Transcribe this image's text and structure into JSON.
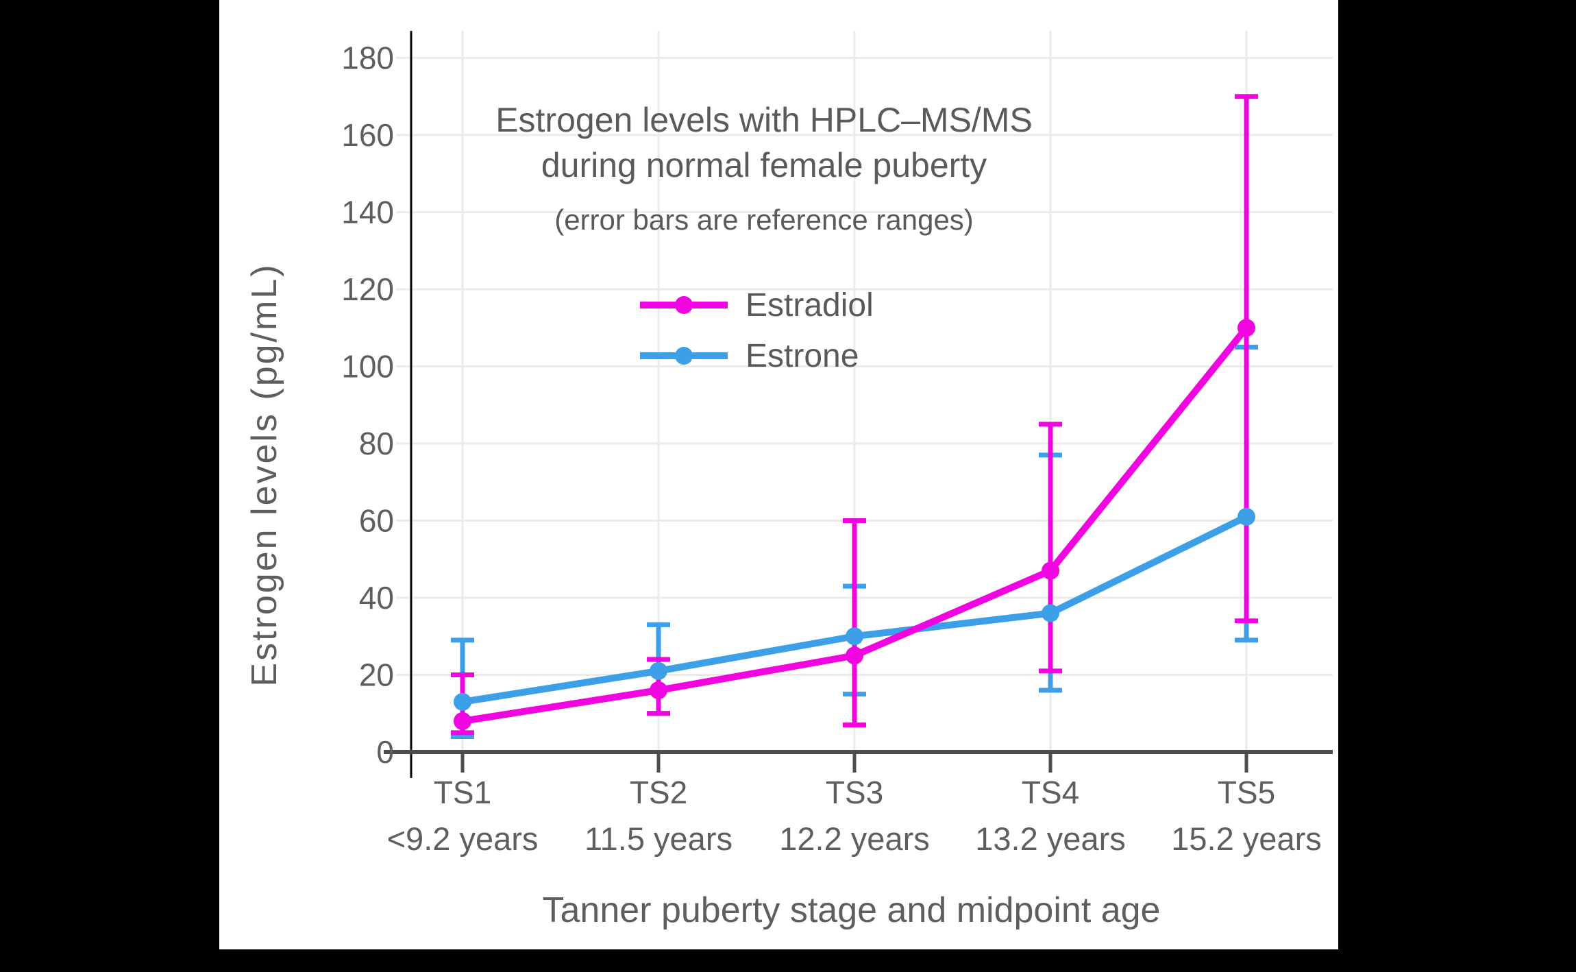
{
  "page": {
    "background": "#000000",
    "panel_background": "#ffffff"
  },
  "chart_data": {
    "type": "line",
    "title": "Estrogen levels with HPLC–MS/MS",
    "title_line2": "during normal female puberty",
    "subtitle": "(error bars are reference ranges)",
    "xlabel": "Tanner puberty stage and midpoint age",
    "ylabel": "Estrogen levels (pg/mL)",
    "categories": [
      "TS1",
      "TS2",
      "TS3",
      "TS4",
      "TS5"
    ],
    "category_sublabels": [
      "<9.2 years",
      "11.5 years",
      "12.2 years",
      "13.2 years",
      "15.2 years"
    ],
    "ylim": [
      0,
      180
    ],
    "ytick_interval": 20,
    "ytick_labels": [
      "0",
      "20",
      "40",
      "60",
      "80",
      "100",
      "120",
      "140",
      "160",
      "180"
    ],
    "grid": true,
    "legend_position": "upper-left-inside",
    "series": [
      {
        "name": "Estradiol",
        "color": "#F005E0",
        "values": [
          8,
          16,
          25,
          47,
          110
        ],
        "error_low": [
          5,
          10,
          7,
          21,
          34
        ],
        "error_high": [
          20,
          24,
          60,
          85,
          170
        ]
      },
      {
        "name": "Estrone",
        "color": "#3D9FE8",
        "values": [
          13,
          21,
          30,
          36,
          61
        ],
        "error_low": [
          4,
          10,
          15,
          16,
          29
        ],
        "error_high": [
          29,
          33,
          43,
          77,
          105
        ]
      }
    ],
    "colors": {
      "grid": "#ebebeb",
      "x_axis": "#4d4d4d",
      "y_axis_line": "#000000",
      "tick_text": "#5e5e5e"
    }
  }
}
